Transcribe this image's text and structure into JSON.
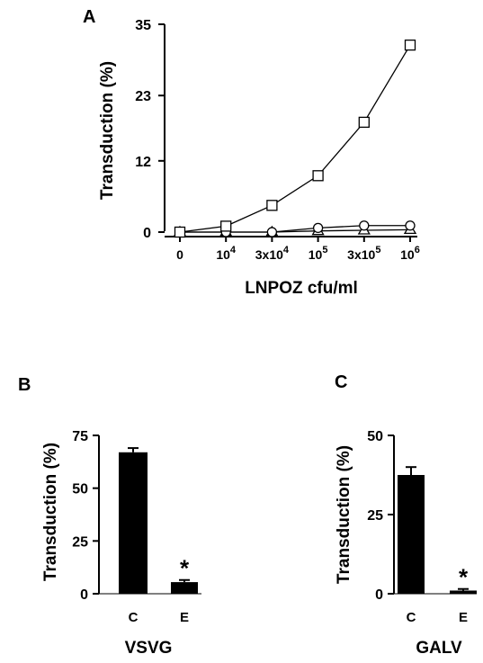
{
  "panels": {
    "A": {
      "letter": "A"
    },
    "B": {
      "letter": "B"
    },
    "C": {
      "letter": "C"
    }
  },
  "chart_data": [
    {
      "panel": "A",
      "type": "line",
      "xlabel": "LNPOZ cfu/ml",
      "ylabel": "Transduction (%)",
      "ylim": [
        0,
        35
      ],
      "yticks": [
        0,
        12,
        23,
        35
      ],
      "categories": [
        {
          "base": "0",
          "exp": ""
        },
        {
          "base": "10",
          "exp": "4"
        },
        {
          "base": "3x10",
          "exp": "4"
        },
        {
          "base": "10",
          "exp": "5"
        },
        {
          "base": "3x10",
          "exp": "5"
        },
        {
          "base": "10",
          "exp": "6"
        }
      ],
      "grid": false,
      "series": [
        {
          "marker": "square",
          "values": [
            0,
            1,
            4.5,
            9.5,
            18.5,
            31.5
          ]
        },
        {
          "marker": "circle",
          "values": [
            0,
            0,
            0,
            0.7,
            1.1,
            1.1
          ]
        },
        {
          "marker": "triangle",
          "values": [
            0,
            0,
            0,
            0.2,
            0.3,
            0.4
          ]
        }
      ]
    },
    {
      "panel": "B",
      "type": "bar",
      "xlabel": "VSVG",
      "ylabel": "Transduction (%)",
      "ylim": [
        0,
        75
      ],
      "yticks": [
        0,
        25,
        50,
        75
      ],
      "categories": [
        "C",
        "E"
      ],
      "values": [
        67,
        5.5
      ],
      "errors": [
        2,
        1
      ],
      "annotations": [
        "",
        "*"
      ]
    },
    {
      "panel": "C",
      "type": "bar",
      "xlabel": "GALV",
      "ylabel": "Transduction (%)",
      "ylim": [
        0,
        50
      ],
      "yticks": [
        0,
        25,
        50
      ],
      "categories": [
        "C",
        "E"
      ],
      "values": [
        37.5,
        1
      ],
      "errors": [
        2.5,
        0.5
      ],
      "annotations": [
        "",
        "*"
      ]
    }
  ]
}
